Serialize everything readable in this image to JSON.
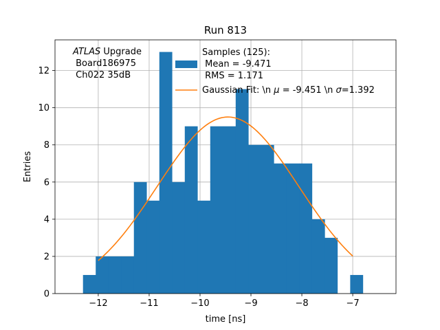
{
  "chart_data": {
    "type": "histogram",
    "title": "Run 813",
    "xlabel": "time [ns]",
    "ylabel": "Entries",
    "xlim": [
      -12.85,
      -6.15
    ],
    "ylim": [
      0,
      13.65
    ],
    "xticks": [
      -12,
      -11,
      -10,
      -9,
      -8,
      -7
    ],
    "xtick_labels": [
      "−12",
      "−11",
      "−10",
      "−9",
      "−8",
      "−7"
    ],
    "yticks": [
      0,
      2,
      4,
      6,
      8,
      10,
      12
    ],
    "ytick_labels": [
      "0",
      "2",
      "4",
      "6",
      "8",
      "10",
      "12"
    ],
    "grid": true,
    "bar_color": "#1f77b4",
    "fit_color": "#ff7f0e",
    "bins": [
      {
        "x0": -12.3,
        "x1": -12.05,
        "count": 1
      },
      {
        "x0": -12.05,
        "x1": -11.8,
        "count": 2
      },
      {
        "x0": -11.8,
        "x1": -11.55,
        "count": 2
      },
      {
        "x0": -11.55,
        "x1": -11.3,
        "count": 2
      },
      {
        "x0": -11.3,
        "x1": -11.05,
        "count": 6
      },
      {
        "x0": -11.05,
        "x1": -10.8,
        "count": 5
      },
      {
        "x0": -10.8,
        "x1": -10.55,
        "count": 13
      },
      {
        "x0": -10.55,
        "x1": -10.3,
        "count": 6
      },
      {
        "x0": -10.3,
        "x1": -10.05,
        "count": 9
      },
      {
        "x0": -10.05,
        "x1": -9.8,
        "count": 5
      },
      {
        "x0": -9.8,
        "x1": -9.55,
        "count": 9
      },
      {
        "x0": -9.55,
        "x1": -9.3,
        "count": 9
      },
      {
        "x0": -9.3,
        "x1": -9.05,
        "count": 11
      },
      {
        "x0": -9.05,
        "x1": -8.8,
        "count": 8
      },
      {
        "x0": -8.8,
        "x1": -8.55,
        "count": 8
      },
      {
        "x0": -8.55,
        "x1": -8.3,
        "count": 7
      },
      {
        "x0": -8.3,
        "x1": -8.05,
        "count": 7
      },
      {
        "x0": -8.05,
        "x1": -7.8,
        "count": 7
      },
      {
        "x0": -7.8,
        "x1": -7.55,
        "count": 4
      },
      {
        "x0": -7.55,
        "x1": -7.3,
        "count": 3
      },
      {
        "x0": -7.3,
        "x1": -7.05,
        "count": 0
      },
      {
        "x0": -7.05,
        "x1": -6.8,
        "count": 1
      }
    ],
    "fit": {
      "mu": -9.451,
      "sigma": 1.392,
      "amplitude": 9.5,
      "x_range": [
        -12.0,
        -7.0
      ]
    },
    "legend": {
      "placement": "top-right",
      "histogram_label_lines": [
        "Samples (125):",
        " Mean = -9.471",
        " RMS = 1.171"
      ],
      "fit_label_parts": [
        "Gaussian Fit: \\n ",
        "μ",
        " = -9.451 \\n ",
        "σ",
        "=1.392"
      ]
    },
    "annotation": {
      "italic": "ATLAS",
      "rest": " Upgrade",
      "lines": [
        " Board186975",
        " Ch022 35dB"
      ]
    }
  }
}
